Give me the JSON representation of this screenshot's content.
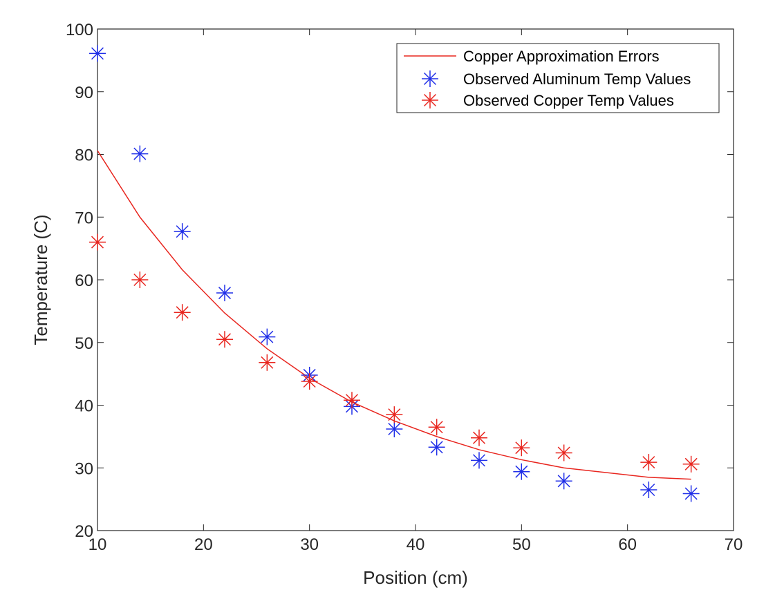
{
  "chart_data": {
    "type": "scatter",
    "title": "",
    "xlabel": "Position (cm)",
    "ylabel": "Temperature (C)",
    "xlim": [
      10,
      70
    ],
    "ylim": [
      20,
      100
    ],
    "xticks": [
      10,
      20,
      30,
      40,
      50,
      60,
      70
    ],
    "yticks": [
      20,
      30,
      40,
      50,
      60,
      70,
      80,
      90,
      100
    ],
    "xtick_labels": [
      "10",
      "20",
      "30",
      "40",
      "50",
      "60",
      "70"
    ],
    "ytick_labels": [
      "20",
      "30",
      "40",
      "50",
      "60",
      "70",
      "80",
      "90",
      "100"
    ],
    "grid": false,
    "legend_position": "top-right",
    "series": [
      {
        "name": "Copper Approximation Errors",
        "kind": "line",
        "color": "#e8261f",
        "x": [
          10,
          14,
          18,
          22,
          26,
          30,
          34,
          38,
          42,
          46,
          50,
          54,
          62,
          66
        ],
        "y": [
          80.6,
          70.0,
          61.6,
          54.7,
          49.0,
          44.3,
          40.5,
          37.5,
          35.0,
          32.9,
          31.3,
          30.0,
          28.5,
          28.2
        ]
      },
      {
        "name": "Observed Aluminum Temp Values",
        "kind": "marker",
        "marker": "asterisk",
        "color": "#1f2ee8",
        "x": [
          10,
          14,
          18,
          22,
          26,
          30,
          34,
          38,
          42,
          46,
          50,
          54,
          62,
          66
        ],
        "y": [
          96.1,
          80.1,
          67.7,
          57.9,
          50.9,
          44.8,
          39.8,
          36.2,
          33.3,
          31.2,
          29.4,
          27.9,
          26.5,
          25.9
        ]
      },
      {
        "name": "Observed Copper Temp Values",
        "kind": "marker",
        "marker": "asterisk",
        "color": "#e8261f",
        "x": [
          10,
          14,
          18,
          22,
          26,
          30,
          34,
          38,
          42,
          46,
          50,
          54,
          62,
          66
        ],
        "y": [
          66.0,
          60.0,
          54.8,
          50.5,
          46.8,
          43.8,
          40.8,
          38.5,
          36.5,
          34.8,
          33.2,
          32.4,
          30.9,
          30.6
        ]
      }
    ]
  }
}
